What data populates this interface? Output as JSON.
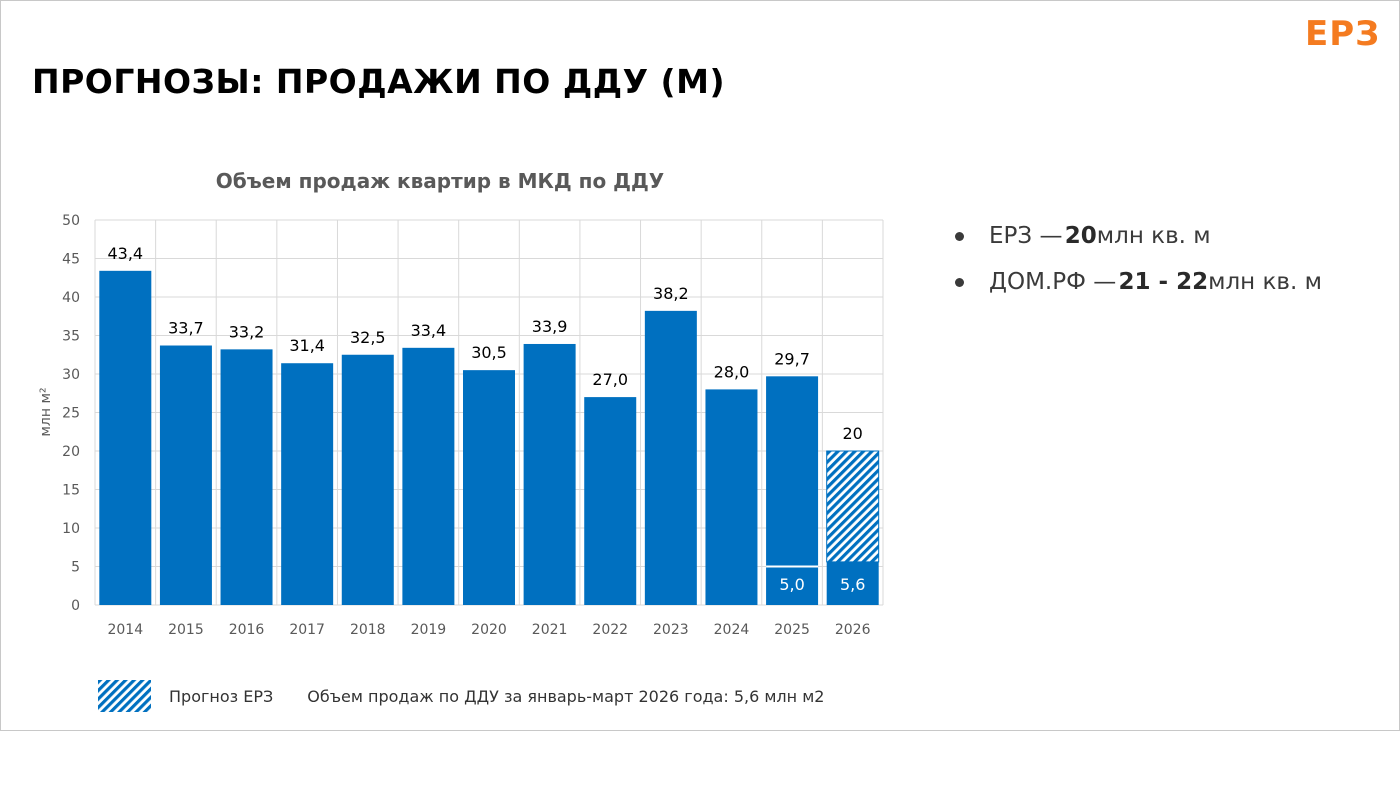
{
  "brand": {
    "logo_text": "ЕРЗ",
    "accent_color": "#f47b20"
  },
  "slide": {
    "title": "ПРОГНОЗЫ: ПРОДАЖИ ПО ДДУ (М)"
  },
  "bullets": [
    {
      "prefix": "ЕРЗ — ",
      "value": "20",
      "suffix": " млн кв. м"
    },
    {
      "prefix": "ДОМ.РФ — ",
      "value": "21 - 22",
      "suffix": " млн кв. м"
    }
  ],
  "legend": {
    "forecast_label": "Прогноз ЕРЗ",
    "note": "Объем продаж по ДДУ за январь-март 2026 года: 5,6 млн м2"
  },
  "chart_data": {
    "type": "bar",
    "title": "Объем продаж квартир в МКД по ДДУ",
    "xlabel": "",
    "ylabel": "млн м²",
    "ylim": [
      0,
      50
    ],
    "yticks": [
      0,
      5,
      10,
      15,
      20,
      25,
      30,
      35,
      40,
      45,
      50
    ],
    "grid": true,
    "bar_color": "#0070c0",
    "categories": [
      "2014",
      "2015",
      "2016",
      "2017",
      "2018",
      "2019",
      "2020",
      "2021",
      "2022",
      "2023",
      "2024",
      "2025",
      "2026"
    ],
    "values": [
      43.4,
      33.7,
      33.2,
      31.4,
      32.5,
      33.4,
      30.5,
      33.9,
      27.0,
      38.2,
      28.0,
      29.7,
      20
    ],
    "value_labels": [
      "43,4",
      "33,7",
      "33,2",
      "31,4",
      "32,5",
      "33,4",
      "30,5",
      "33,9",
      "27,0",
      "38,2",
      "28,0",
      "29,7",
      "20"
    ],
    "q1_segments": [
      {
        "category": "2025",
        "value": 5.0,
        "label": "5,0"
      },
      {
        "category": "2026",
        "value": 5.6,
        "label": "5,6"
      }
    ],
    "forecast_category": "2026"
  }
}
